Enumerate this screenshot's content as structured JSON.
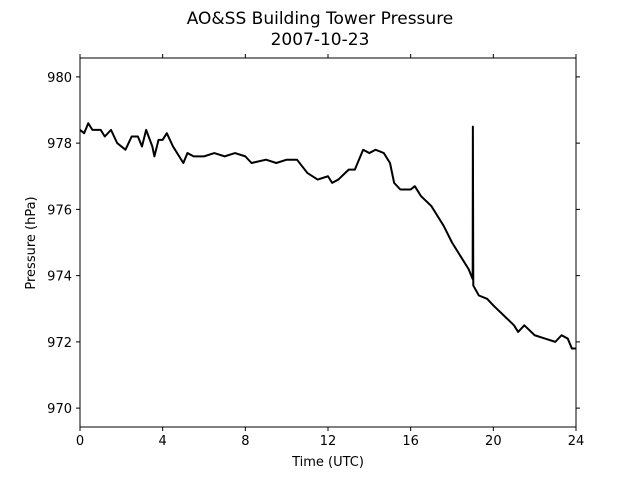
{
  "chart_data": {
    "type": "line",
    "title": "AO&SS Building Tower Pressure",
    "subtitle": "2007-10-23",
    "x_label": "Time (UTC)",
    "y_label": "Pressure (hPa)",
    "x": [
      0,
      0.2,
      0.4,
      0.6,
      1.0,
      1.2,
      1.5,
      1.8,
      2.0,
      2.2,
      2.5,
      2.8,
      3.0,
      3.2,
      3.5,
      3.6,
      3.8,
      4.0,
      4.2,
      4.5,
      4.8,
      5.0,
      5.2,
      5.5,
      6.0,
      6.5,
      7.0,
      7.5,
      8.0,
      8.3,
      9.0,
      9.5,
      10.0,
      10.5,
      11.0,
      11.5,
      12.0,
      12.2,
      12.5,
      13.0,
      13.3,
      13.7,
      14.0,
      14.3,
      14.7,
      15.0,
      15.2,
      15.5,
      16.0,
      16.2,
      16.5,
      17.0,
      17.3,
      17.6,
      18.0,
      18.5,
      18.8,
      19.0,
      19.01,
      19.03,
      19.3,
      19.7,
      20.0,
      20.5,
      21.0,
      21.2,
      21.5,
      22.0,
      22.5,
      23.0,
      23.3,
      23.6,
      23.8,
      24.0
    ],
    "series": [
      {
        "name": "Pressure",
        "color": "#000000",
        "values": [
          978.4,
          978.3,
          978.6,
          978.4,
          978.4,
          978.2,
          978.4,
          978.0,
          977.9,
          977.8,
          978.2,
          978.2,
          977.9,
          978.4,
          977.9,
          977.6,
          978.1,
          978.1,
          978.3,
          977.9,
          977.6,
          977.4,
          977.7,
          977.6,
          977.6,
          977.7,
          977.6,
          977.7,
          977.6,
          977.4,
          977.5,
          977.4,
          977.5,
          977.5,
          977.1,
          976.9,
          977.0,
          976.8,
          976.9,
          977.2,
          977.2,
          977.8,
          977.7,
          977.8,
          977.7,
          977.4,
          976.8,
          976.6,
          976.6,
          976.7,
          976.4,
          976.1,
          975.8,
          975.5,
          975.0,
          974.5,
          974.2,
          973.9,
          978.5,
          973.7,
          973.4,
          973.3,
          973.1,
          972.8,
          972.5,
          972.3,
          972.5,
          972.2,
          972.1,
          972.0,
          972.2,
          972.1,
          971.8,
          971.8
        ]
      }
    ],
    "xlim": [
      0,
      24
    ],
    "xticks": [
      0,
      4,
      8,
      12,
      16,
      20,
      24
    ],
    "ylim": [
      969.43,
      980.57
    ],
    "yticks": [
      970,
      972,
      974,
      976,
      978,
      980
    ]
  }
}
